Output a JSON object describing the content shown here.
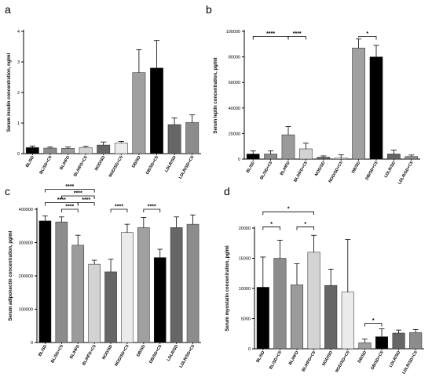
{
  "chart_data": [
    {
      "panel": "a",
      "type": "bar",
      "ylabel": "Serum insulin concentration, ng/ml",
      "categories": [
        "BL/SD",
        "BL/SD+C5",
        "BL/HFD",
        "BL/HFD+C5",
        "NOD/SD",
        "NOD/SD+C5",
        "DB/SD",
        "DB/SD+C5",
        "LDLR/SD",
        "LDLR/SD+C5"
      ],
      "values": [
        0.2,
        0.18,
        0.17,
        0.2,
        0.28,
        0.35,
        2.65,
        2.8,
        0.95,
        1.02
      ],
      "errors": [
        0.05,
        0.04,
        0.05,
        0.04,
        0.1,
        0.05,
        0.75,
        0.9,
        0.22,
        0.25
      ],
      "colors": [
        "#000000",
        "#8c8c8c",
        "#9b9b9b",
        "#d3d3d3",
        "#666666",
        "#ebebeb",
        "#a0a0a0",
        "#000000",
        "#666666",
        "#8c8c8c"
      ],
      "ylim": [
        0,
        4
      ],
      "yticks": [
        0,
        1,
        2,
        3,
        4
      ],
      "significance": []
    },
    {
      "panel": "b",
      "type": "bar",
      "ylabel": "Serum leptin concentration, pg/ml",
      "categories": [
        "BL/SD",
        "BL/SD+C5",
        "BL/HFD",
        "BL/HFD+C5",
        "NOD/SD",
        "NOD/SD+C5",
        "DB/SD",
        "DB/SD+C5",
        "LDLR/SD",
        "LDLR/SD+C5"
      ],
      "values": [
        4000,
        4000,
        19000,
        8000,
        1500,
        800,
        87000,
        80000,
        4000,
        2000
      ],
      "errors": [
        2500,
        2500,
        6500,
        4500,
        1000,
        2500,
        7000,
        9000,
        3000,
        1200
      ],
      "colors": [
        "#000000",
        "#8c8c8c",
        "#9b9b9b",
        "#d3d3d3",
        "#666666",
        "#ebebeb",
        "#a0a0a0",
        "#000000",
        "#666666",
        "#8c8c8c"
      ],
      "ylim": [
        0,
        100000
      ],
      "yticks": [
        0,
        20000,
        40000,
        60000,
        80000,
        100000
      ],
      "significance": [
        {
          "from": 0,
          "to": 2,
          "label": "****",
          "level": 96000
        },
        {
          "from": 2,
          "to": 3,
          "label": "****",
          "level": 96000
        },
        {
          "from": 6,
          "to": 7,
          "label": "*",
          "level": 96000
        }
      ]
    },
    {
      "panel": "c",
      "type": "bar",
      "ylabel": "Serum adiponectin concentration, pg/ml",
      "categories": [
        "BL/SD",
        "BL/SD+C5",
        "BL/HFD",
        "BL/HFD+C5",
        "NOD/SD",
        "NOD/SD+C5",
        "DB/SD",
        "DB/SD+C5",
        "LDLR/SD",
        "LDLR/SD+C5"
      ],
      "values": [
        365000,
        362000,
        292000,
        235000,
        212000,
        330000,
        345000,
        255000,
        345000,
        355000
      ],
      "errors": [
        15000,
        15000,
        30000,
        12000,
        38000,
        25000,
        30000,
        25000,
        32000,
        28000
      ],
      "colors": [
        "#000000",
        "#8c8c8c",
        "#9b9b9b",
        "#d3d3d3",
        "#666666",
        "#ebebeb",
        "#a0a0a0",
        "#000000",
        "#666666",
        "#8c8c8c"
      ],
      "ylim": [
        0,
        400000
      ],
      "yticks": [
        0,
        100000,
        200000,
        300000,
        400000
      ],
      "significance": [
        {
          "from": 0,
          "to": 3,
          "label": "****",
          "level": 460000
        },
        {
          "from": 1,
          "to": 3,
          "label": "****",
          "level": 440000
        },
        {
          "from": 0,
          "to": 2,
          "label": "****",
          "level": 420000
        },
        {
          "from": 2,
          "to": 3,
          "label": "****",
          "level": 420000
        },
        {
          "from": 1,
          "to": 2,
          "label": "****",
          "level": 400000
        },
        {
          "from": 4,
          "to": 5,
          "label": "****",
          "level": 400000
        },
        {
          "from": 6,
          "to": 7,
          "label": "****",
          "level": 400000
        }
      ]
    },
    {
      "panel": "d",
      "type": "bar",
      "ylabel": "Serum myostatin concentration, pg/ml",
      "categories": [
        "BL/SD",
        "BL/SD+C5",
        "BL/HFD",
        "BL/HFD+C5",
        "NOD/SD",
        "NOD/SD+C5",
        "DB/SD",
        "DB/SD+C5",
        "LDLR/SD",
        "LDLR/SD+C5"
      ],
      "values": [
        10200,
        15000,
        10600,
        16000,
        10500,
        9400,
        1000,
        2000,
        2600,
        2700
      ],
      "errors": [
        5000,
        3000,
        3500,
        2800,
        2700,
        8700,
        600,
        1300,
        500,
        500
      ],
      "colors": [
        "#000000",
        "#8c8c8c",
        "#9b9b9b",
        "#d3d3d3",
        "#666666",
        "#ebebeb",
        "#a0a0a0",
        "#000000",
        "#666666",
        "#8c8c8c"
      ],
      "ylim": [
        0,
        20000
      ],
      "yticks": [
        0,
        5000,
        10000,
        15000,
        20000
      ],
      "significance": [
        {
          "from": 0,
          "to": 3,
          "label": "*",
          "level": 22700
        },
        {
          "from": 0,
          "to": 1,
          "label": "*",
          "level": 20200
        },
        {
          "from": 2,
          "to": 3,
          "label": "*",
          "level": 20200
        },
        {
          "from": 6,
          "to": 7,
          "label": "*",
          "level": 4200
        }
      ]
    }
  ]
}
